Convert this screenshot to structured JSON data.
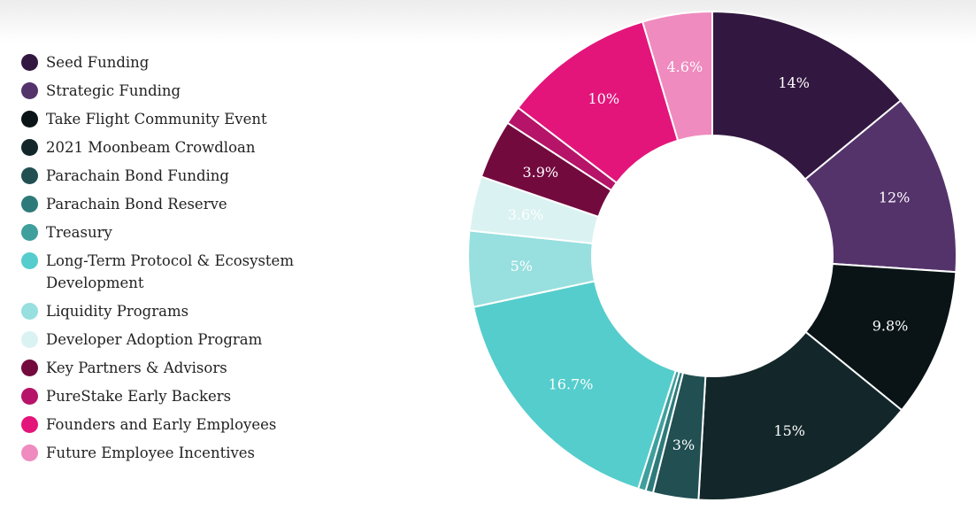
{
  "chart_data": {
    "type": "pie",
    "subtype": "donut",
    "legend_position": "left",
    "series": [
      {
        "name": "Seed Funding",
        "value": 14,
        "label": "14%",
        "color": "#321740"
      },
      {
        "name": "Strategic Funding",
        "value": 12,
        "label": "12%",
        "color": "#54336b"
      },
      {
        "name": "Take Flight Community Event",
        "value": 9.8,
        "label": "9.8%",
        "color": "#0a1416"
      },
      {
        "name": "2021 Moonbeam Crowdloan",
        "value": 15,
        "label": "15%",
        "color": "#13272a"
      },
      {
        "name": "Parachain Bond Funding",
        "value": 3,
        "label": "3%",
        "color": "#214f52"
      },
      {
        "name": "Parachain Bond Reserve",
        "value": 0.5,
        "label": "",
        "color": "#2e7a7a"
      },
      {
        "name": "Treasury",
        "value": 0.5,
        "label": "",
        "color": "#3e9f9d"
      },
      {
        "name": "Long-Term Protocol & Ecosystem Development",
        "value": 16.7,
        "label": "16.7%",
        "color": "#55cdcc"
      },
      {
        "name": "Liquidity Programs",
        "value": 5,
        "label": "5%",
        "color": "#98dfdf"
      },
      {
        "name": "Developer Adoption Program",
        "value": 3.6,
        "label": "3.6%",
        "color": "#daf2f2"
      },
      {
        "name": "Key Partners & Advisors",
        "value": 3.9,
        "label": "3.9%",
        "color": "#730a3e"
      },
      {
        "name": "PureStake Early Backers",
        "value": 1.2,
        "label": "",
        "color": "#b51468"
      },
      {
        "name": "Founders and Early Employees",
        "value": 10,
        "label": "10%",
        "color": "#e3157b"
      },
      {
        "name": "Future Employee Incentives",
        "value": 4.6,
        "label": "4.6%",
        "color": "#ef8bbf"
      }
    ]
  }
}
